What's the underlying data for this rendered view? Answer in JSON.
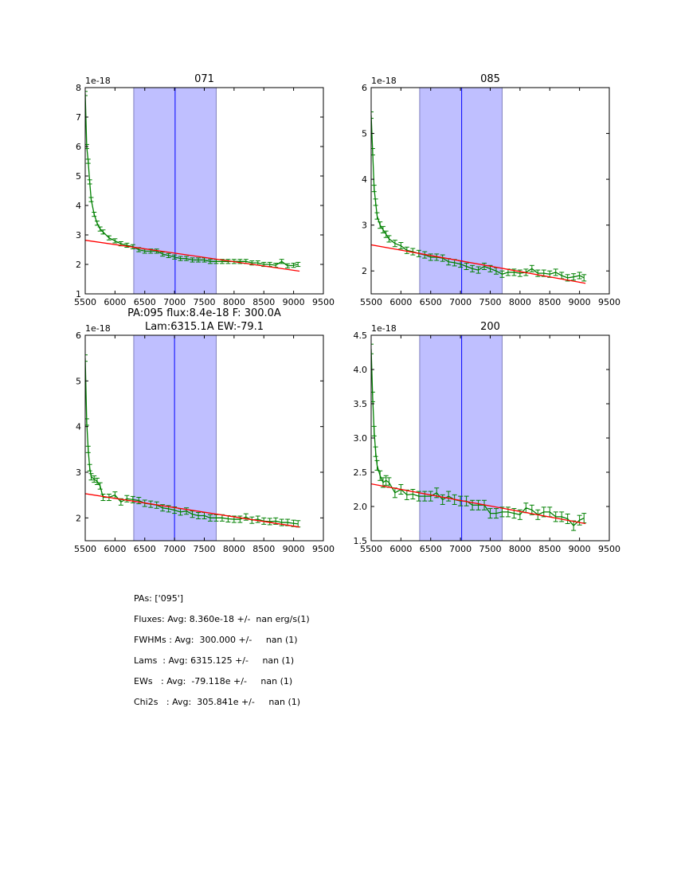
{
  "colors": {
    "data": "#008000",
    "fit": "#ff0000",
    "band": "#bfbfff",
    "band_edge": "#8080c0",
    "center_line": "#0000ff"
  },
  "stats": [
    "PAs: ['095']",
    "Fluxes: Avg: 8.360e-18 +/-  nan erg/s(1)",
    "FWHMs : Avg:  300.000 +/-     nan (1)",
    "Lams  : Avg: 6315.125 +/-     nan (1)",
    "EWs   : Avg:  -79.118e +/-     nan (1)",
    "Chi2s   : Avg:  305.841e +/-     nan (1)"
  ],
  "chart_data": [
    {
      "type": "line",
      "title": [
        "071"
      ],
      "offset_label": "1e-18",
      "xlim": [
        5500,
        9500
      ],
      "ylim": [
        1,
        8
      ],
      "xticks": [
        5500,
        6000,
        6500,
        7000,
        7500,
        8000,
        8500,
        9000,
        9500
      ],
      "yticks": [
        1,
        2,
        3,
        4,
        5,
        6,
        7,
        8
      ],
      "ytick_labels": [
        "1",
        "2",
        "3",
        "4",
        "5",
        "6",
        "7",
        "8"
      ],
      "band": [
        6315,
        7700
      ],
      "vline": 7010,
      "fit": [
        [
          5500,
          2.82
        ],
        [
          9100,
          1.77
        ]
      ],
      "err": 0.07,
      "x": [
        5500,
        5525,
        5550,
        5575,
        5600,
        5650,
        5700,
        5750,
        5800,
        5900,
        6000,
        6100,
        6200,
        6300,
        6400,
        6500,
        6600,
        6700,
        6800,
        6900,
        7000,
        7100,
        7200,
        7300,
        7400,
        7500,
        7600,
        7700,
        7800,
        7900,
        8000,
        8100,
        8200,
        8300,
        8400,
        8500,
        8600,
        8700,
        8800,
        8900,
        9000,
        9075
      ],
      "y": [
        7.8,
        6.0,
        5.5,
        4.8,
        4.2,
        3.7,
        3.4,
        3.2,
        3.1,
        2.9,
        2.8,
        2.7,
        2.65,
        2.6,
        2.5,
        2.45,
        2.45,
        2.45,
        2.35,
        2.3,
        2.25,
        2.2,
        2.2,
        2.15,
        2.15,
        2.15,
        2.1,
        2.1,
        2.1,
        2.1,
        2.1,
        2.1,
        2.1,
        2.05,
        2.05,
        2.0,
        2.0,
        1.97,
        2.1,
        1.95,
        1.97,
        2.0
      ]
    },
    {
      "type": "line",
      "title": [
        "085"
      ],
      "offset_label": "1e-18",
      "xlim": [
        5500,
        9500
      ],
      "ylim": [
        1.5,
        6
      ],
      "xticks": [
        5500,
        6000,
        6500,
        7000,
        7500,
        8000,
        8500,
        9000,
        9500
      ],
      "yticks": [
        2,
        3,
        4,
        5,
        6
      ],
      "ytick_labels": [
        "2",
        "3",
        "4",
        "5",
        "6"
      ],
      "band": [
        6315,
        7700
      ],
      "vline": 7020,
      "fit": [
        [
          5500,
          2.57
        ],
        [
          9100,
          1.73
        ]
      ],
      "err": 0.07,
      "x": [
        5500,
        5525,
        5550,
        5575,
        5600,
        5650,
        5700,
        5750,
        5800,
        5900,
        6000,
        6100,
        6200,
        6300,
        6400,
        6500,
        6600,
        6700,
        6800,
        6900,
        7000,
        7100,
        7200,
        7300,
        7400,
        7500,
        7600,
        7700,
        7800,
        7900,
        8000,
        8100,
        8200,
        8300,
        8400,
        8500,
        8600,
        8700,
        8800,
        8900,
        9000,
        9075
      ],
      "y": [
        5.4,
        4.6,
        3.8,
        3.5,
        3.2,
        3.0,
        2.9,
        2.8,
        2.7,
        2.6,
        2.55,
        2.45,
        2.42,
        2.38,
        2.35,
        2.3,
        2.3,
        2.28,
        2.2,
        2.18,
        2.15,
        2.1,
        2.05,
        2.02,
        2.1,
        2.05,
        2.0,
        1.93,
        1.97,
        1.97,
        1.95,
        1.97,
        2.05,
        1.95,
        1.95,
        1.93,
        1.97,
        1.9,
        1.85,
        1.87,
        1.9,
        1.85
      ]
    },
    {
      "type": "line",
      "title": [
        "PA:095 flux:8.4e-18 F: 300.0A",
        "Lam:6315.1A EW:-79.1"
      ],
      "offset_label": "1e-18",
      "xlim": [
        5500,
        9500
      ],
      "ylim": [
        1.5,
        6
      ],
      "xticks": [
        5500,
        6000,
        6500,
        7000,
        7500,
        8000,
        8500,
        9000,
        9500
      ],
      "yticks": [
        2,
        3,
        4,
        5,
        6
      ],
      "ytick_labels": [
        "2",
        "3",
        "4",
        "5",
        "6"
      ],
      "band": [
        6315,
        7700
      ],
      "vline": 7000,
      "fit": [
        [
          5500,
          2.53
        ],
        [
          9100,
          1.8
        ]
      ],
      "err": 0.07,
      "x": [
        5500,
        5525,
        5550,
        5575,
        5600,
        5650,
        5700,
        5750,
        5800,
        5900,
        6000,
        6100,
        6200,
        6300,
        6400,
        6500,
        6600,
        6700,
        6800,
        6900,
        7000,
        7100,
        7200,
        7300,
        7400,
        7500,
        7600,
        7700,
        7800,
        7900,
        8000,
        8100,
        8200,
        8300,
        8400,
        8500,
        8600,
        8700,
        8800,
        8900,
        9000,
        9075
      ],
      "y": [
        5.5,
        4.1,
        3.5,
        3.1,
        2.9,
        2.85,
        2.8,
        2.7,
        2.45,
        2.45,
        2.5,
        2.35,
        2.42,
        2.4,
        2.38,
        2.32,
        2.3,
        2.28,
        2.22,
        2.2,
        2.17,
        2.13,
        2.15,
        2.08,
        2.05,
        2.05,
        2.0,
        2.0,
        2.0,
        1.98,
        1.97,
        1.97,
        2.02,
        1.95,
        1.97,
        1.93,
        1.92,
        1.93,
        1.9,
        1.9,
        1.88,
        1.87
      ]
    },
    {
      "type": "line",
      "title": [
        "200"
      ],
      "offset_label": "1e-18",
      "xlim": [
        5500,
        9500
      ],
      "ylim": [
        1.5,
        4.5
      ],
      "xticks": [
        5500,
        6000,
        6500,
        7000,
        7500,
        8000,
        8500,
        9000,
        9500
      ],
      "yticks": [
        1.5,
        2.0,
        2.5,
        3.0,
        3.5,
        4.0,
        4.5
      ],
      "ytick_labels": [
        "1.5",
        "2.0",
        "2.5",
        "3.0",
        "3.5",
        "4.0",
        "4.5"
      ],
      "band": [
        6315,
        7700
      ],
      "vline": 7020,
      "fit": [
        [
          5500,
          2.33
        ],
        [
          9100,
          1.75
        ]
      ],
      "err": 0.07,
      "x": [
        5500,
        5525,
        5550,
        5575,
        5600,
        5650,
        5700,
        5750,
        5800,
        5900,
        6000,
        6100,
        6200,
        6300,
        6400,
        6500,
        6600,
        6700,
        6800,
        6900,
        7000,
        7100,
        7200,
        7300,
        7400,
        7500,
        7600,
        7700,
        7800,
        7900,
        8000,
        8100,
        8200,
        8300,
        8400,
        8500,
        8600,
        8700,
        8800,
        8900,
        9000,
        9075
      ],
      "y": [
        4.3,
        3.6,
        3.1,
        2.8,
        2.6,
        2.45,
        2.35,
        2.38,
        2.35,
        2.2,
        2.25,
        2.17,
        2.18,
        2.15,
        2.15,
        2.15,
        2.2,
        2.1,
        2.15,
        2.1,
        2.08,
        2.08,
        2.02,
        2.02,
        2.02,
        1.9,
        1.9,
        1.92,
        1.92,
        1.9,
        1.88,
        1.98,
        1.95,
        1.88,
        1.92,
        1.92,
        1.85,
        1.85,
        1.82,
        1.72,
        1.8,
        1.83
      ]
    }
  ]
}
